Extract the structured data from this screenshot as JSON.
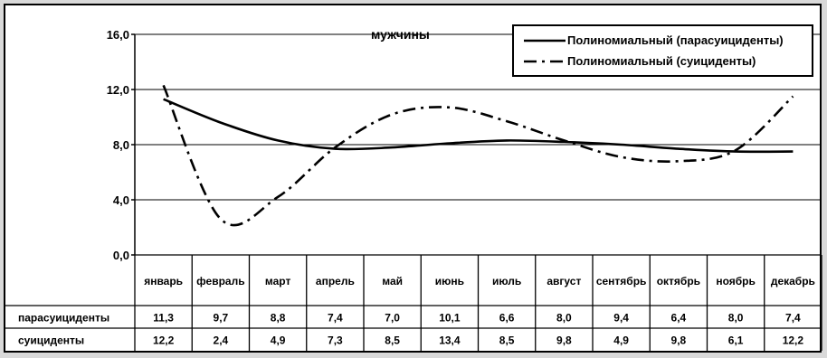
{
  "chart_data": {
    "type": "line",
    "title": "мужчины",
    "categories": [
      "январь",
      "февраль",
      "март",
      "апрель",
      "май",
      "июнь",
      "июль",
      "август",
      "сентябрь",
      "октябрь",
      "ноябрь",
      "декабрь"
    ],
    "yticks": [
      "0,0",
      "4,0",
      "8,0",
      "12,0",
      "16,0"
    ],
    "ylim": [
      0,
      16
    ],
    "grid": true,
    "legend": "top-right",
    "legend_entries": [
      "Полиномиальный (парасуициденты)",
      "Полиномиальный (суициденты)"
    ],
    "table_rows": [
      {
        "label": "парасуициденты",
        "values": [
          "11,3",
          "9,7",
          "8,8",
          "7,4",
          "7,0",
          "10,1",
          "6,6",
          "8,0",
          "9,4",
          "6,4",
          "8,0",
          "7,4"
        ]
      },
      {
        "label": "суициденты",
        "values": [
          "12,2",
          "2,4",
          "4,9",
          "7,3",
          "8,5",
          "13,4",
          "8,5",
          "9,8",
          "4,9",
          "9,8",
          "6,1",
          "12,2"
        ]
      }
    ],
    "trend_series": [
      {
        "style": "solid",
        "values": [
          11.3,
          9.6,
          8.3,
          7.7,
          7.8,
          8.1,
          8.3,
          8.2,
          8.0,
          7.7,
          7.5,
          7.5
        ]
      },
      {
        "style": "dash-dot",
        "values": [
          12.3,
          2.6,
          4.2,
          7.8,
          10.2,
          10.7,
          9.7,
          8.3,
          7.1,
          6.8,
          7.6,
          11.5
        ]
      }
    ]
  }
}
